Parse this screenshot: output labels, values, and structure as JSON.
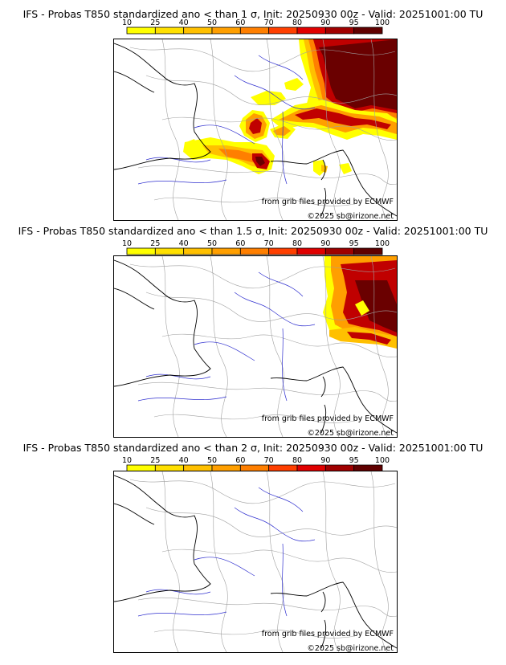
{
  "colorbar": {
    "ticks": [
      "10",
      "25",
      "40",
      "50",
      "60",
      "70",
      "80",
      "90",
      "95",
      "100"
    ],
    "colors": [
      "#ffff00",
      "#ffe000",
      "#ffc000",
      "#ff9f00",
      "#ff7f00",
      "#ff3f00",
      "#e00000",
      "#a00000",
      "#600000"
    ]
  },
  "panels": [
    {
      "title": "IFS - Probas T850  standardized ano < than 1 σ, Init: 20250930 00z - Valid: 20251001:00 TU",
      "source": "from grib files provided by ECMWF",
      "copyright": "©2025 sb@irizone.net"
    },
    {
      "title": "IFS - Probas T850  standardized ano < than 1.5 σ, Init: 20250930 00z - Valid: 20251001:00 TU",
      "source": "from grib files provided by ECMWF",
      "copyright": "©2025 sb@irizone.net"
    },
    {
      "title": "IFS - Probas T850  standardized ano < than 2 σ, Init: 20250930 00z - Valid: 20251001:00 TU",
      "source": "from grib files provided by ECMWF",
      "copyright": "©2025 sb@irizone.net"
    }
  ]
}
